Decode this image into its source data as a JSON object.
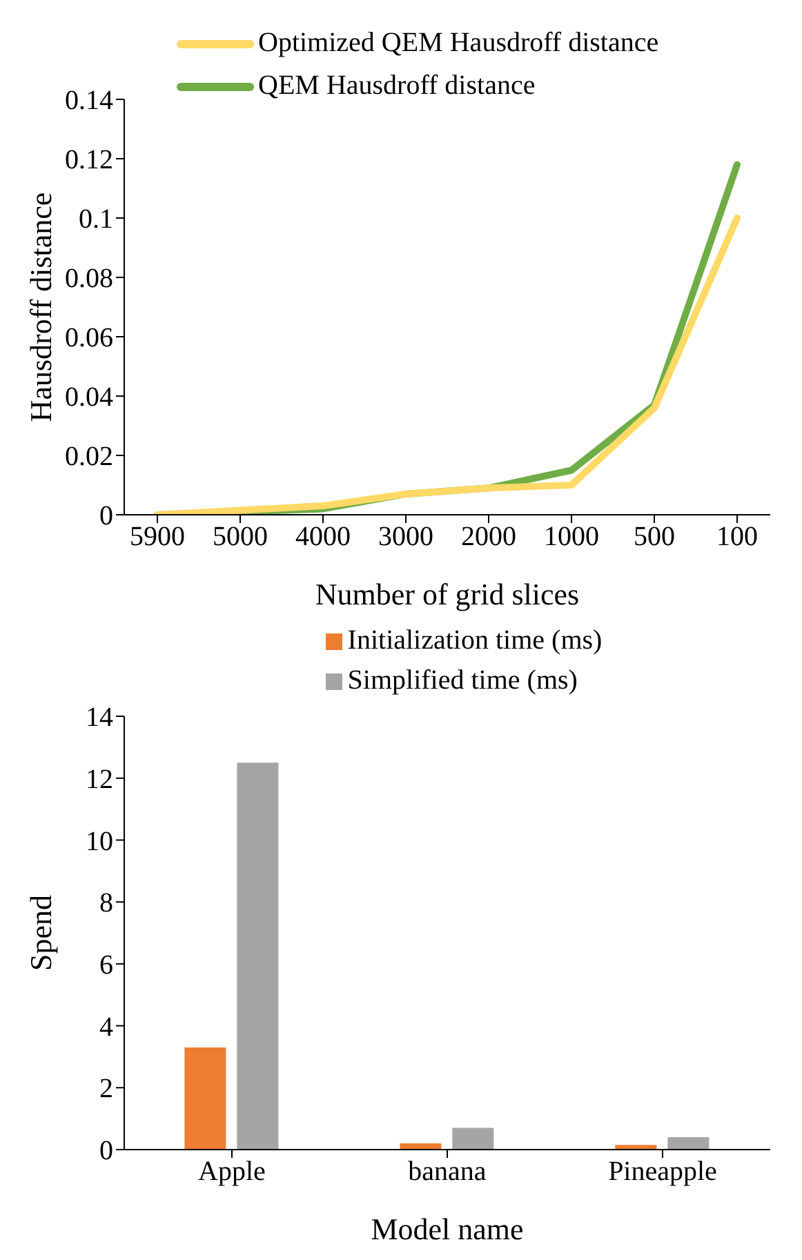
{
  "chart_data": [
    {
      "type": "line",
      "xlabel": "Number of grid slices",
      "ylabel": "Hausdroff distance",
      "categories": [
        "5900",
        "5000",
        "4000",
        "3000",
        "2000",
        "1000",
        "500",
        "100"
      ],
      "series": [
        {
          "name": "QEM Hausdroff distance",
          "color": "#70ad47",
          "values": [
            0,
            0.001,
            0.002,
            0.007,
            0.009,
            0.015,
            0.037,
            0.118
          ]
        },
        {
          "name": "Optimized QEM Hausdroff distance",
          "color": "#ffd966",
          "values": [
            0,
            0.0015,
            0.003,
            0.007,
            0.009,
            0.01,
            0.036,
            0.1
          ]
        }
      ],
      "ylim": [
        0,
        0.14
      ],
      "yticks": [
        0,
        0.02,
        0.04,
        0.06,
        0.08,
        0.1,
        0.12,
        0.14
      ],
      "grid": false,
      "legend": "top",
      "marker": "none",
      "line_style": "solid"
    },
    {
      "type": "bar",
      "xlabel": "Model name",
      "ylabel": "Spend",
      "categories": [
        "Apple",
        "banana",
        "Pineapple"
      ],
      "series": [
        {
          "name": "Initialization time (ms)",
          "color": "#ed7d31",
          "values": [
            3.3,
            0.2,
            0.15
          ]
        },
        {
          "name": "Simplified time (ms)",
          "color": "#a5a5a5",
          "values": [
            12.5,
            0.7,
            0.4
          ]
        }
      ],
      "ylim": [
        0,
        14
      ],
      "yticks": [
        0,
        2,
        4,
        6,
        8,
        10,
        12,
        14
      ],
      "grid": false,
      "legend": "top"
    }
  ]
}
